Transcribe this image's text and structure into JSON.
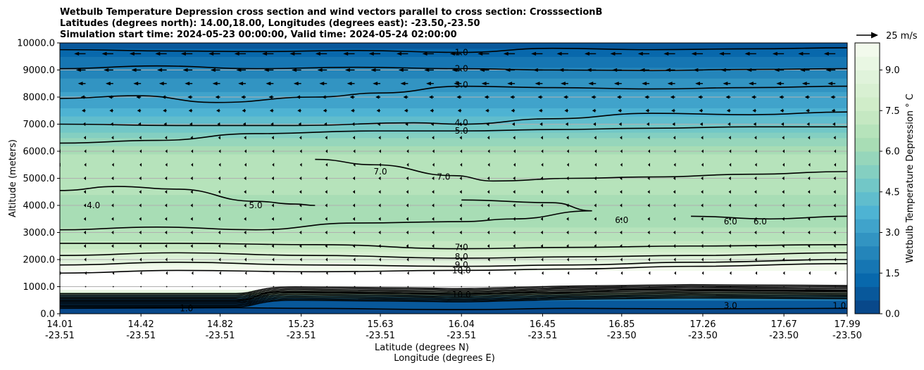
{
  "chart_data": {
    "type": "contourf",
    "title_lines": [
      "Wetbulb Temperature Depression cross section and wind vectors parallel to cross section: CrosssectionB",
      "Latitudes (degrees north): 14.00,18.00, Longitudes (degrees east): -23.50,-23.50",
      "Simulation start time: 2024-05-23 00:00:00, Valid time: 2024-05-24 02:00:00"
    ],
    "ylabel": "Altitude (meters)",
    "xlabel_lines": [
      "Latitude (degrees N)",
      "Longitude (degrees E)"
    ],
    "ylim": [
      0,
      10000
    ],
    "y_ticks": [
      0,
      1000,
      2000,
      3000,
      4000,
      5000,
      6000,
      7000,
      8000,
      9000,
      10000
    ],
    "y_tick_labels": [
      "0.0",
      "1000.0",
      "2000.0",
      "3000.0",
      "4000.0",
      "5000.0",
      "6000.0",
      "7000.0",
      "8000.0",
      "9000.0",
      "10000.0"
    ],
    "x_ticks": [
      {
        "lat": "14.01",
        "lon": "-23.51"
      },
      {
        "lat": "14.42",
        "lon": "-23.51"
      },
      {
        "lat": "14.82",
        "lon": "-23.51"
      },
      {
        "lat": "15.23",
        "lon": "-23.51"
      },
      {
        "lat": "15.63",
        "lon": "-23.51"
      },
      {
        "lat": "16.04",
        "lon": "-23.51"
      },
      {
        "lat": "16.45",
        "lon": "-23.51"
      },
      {
        "lat": "16.85",
        "lon": "-23.50"
      },
      {
        "lat": "17.26",
        "lon": "-23.50"
      },
      {
        "lat": "17.67",
        "lon": "-23.50"
      },
      {
        "lat": "17.99",
        "lon": "-23.50"
      }
    ],
    "colorbar": {
      "label": "Wetbulb Temperature Depression $^\\circ$C",
      "label_display": "Wetbulb Temperature Depression ° C",
      "range": [
        0,
        10
      ],
      "tick_values": [
        0,
        1.5,
        3,
        4.5,
        6,
        7.5,
        9
      ],
      "tick_labels": [
        "0.0",
        "1.5",
        "3.0",
        "4.5",
        "6.0",
        "7.5",
        "9.0"
      ],
      "colormap": "GnBu_r",
      "levels": 20
    },
    "wind_reference": {
      "label": "25 m/s",
      "speed": 25
    },
    "depression_profile": [
      {
        "alt": 0,
        "value": 0.3
      },
      {
        "alt": 500,
        "value": 0.8
      },
      {
        "alt": 900,
        "value": 10.5
      },
      {
        "alt": 1500,
        "value": 10.2
      },
      {
        "alt": 2000,
        "value": 8.8
      },
      {
        "alt": 2500,
        "value": 7.2
      },
      {
        "alt": 3000,
        "value": 6.6
      },
      {
        "alt": 3500,
        "value": 6.3
      },
      {
        "alt": 4000,
        "value": 6.2
      },
      {
        "alt": 4500,
        "value": 6.6
      },
      {
        "alt": 5000,
        "value": 7.0
      },
      {
        "alt": 5500,
        "value": 6.9
      },
      {
        "alt": 6000,
        "value": 6.4
      },
      {
        "alt": 6500,
        "value": 5.4
      },
      {
        "alt": 7000,
        "value": 4.4
      },
      {
        "alt": 7500,
        "value": 3.6
      },
      {
        "alt": 8000,
        "value": 3.1
      },
      {
        "alt": 8500,
        "value": 2.8
      },
      {
        "alt": 9000,
        "value": 2.1
      },
      {
        "alt": 9500,
        "value": 1.5
      },
      {
        "alt": 10000,
        "value": 0.6
      }
    ],
    "contour_lines": [
      {
        "level": "1.0",
        "points": [
          [
            14.01,
            9750
          ],
          [
            14.6,
            9700
          ],
          [
            15.0,
            9680
          ],
          [
            15.5,
            9720
          ],
          [
            16.04,
            9650
          ],
          [
            16.5,
            9800
          ],
          [
            17.0,
            9750
          ],
          [
            17.5,
            9780
          ],
          [
            17.99,
            9820
          ]
        ]
      },
      {
        "level": "2.0",
        "points": [
          [
            14.01,
            9050
          ],
          [
            14.5,
            9150
          ],
          [
            15.0,
            9050
          ],
          [
            15.5,
            9100
          ],
          [
            16.04,
            9050
          ],
          [
            16.5,
            9000
          ],
          [
            17.0,
            8980
          ],
          [
            17.5,
            9020
          ],
          [
            17.99,
            9050
          ]
        ]
      },
      {
        "level": "3.0",
        "points": [
          [
            14.01,
            7950
          ],
          [
            14.4,
            8050
          ],
          [
            14.8,
            7800
          ],
          [
            15.3,
            8000
          ],
          [
            15.63,
            8150
          ],
          [
            16.04,
            8400
          ],
          [
            16.5,
            8350
          ],
          [
            17.0,
            8300
          ],
          [
            17.5,
            8350
          ],
          [
            17.99,
            8400
          ]
        ]
      },
      {
        "level": "4.0",
        "points": [
          [
            14.01,
            7000
          ],
          [
            14.6,
            6950
          ],
          [
            15.2,
            6950
          ],
          [
            15.8,
            7050
          ],
          [
            16.04,
            7000
          ],
          [
            16.5,
            7200
          ],
          [
            17.0,
            7400
          ],
          [
            17.5,
            7350
          ],
          [
            17.99,
            7450
          ]
        ]
      },
      {
        "level": "5.0",
        "points": [
          [
            14.01,
            6300
          ],
          [
            14.5,
            6400
          ],
          [
            15.0,
            6650
          ],
          [
            15.6,
            6750
          ],
          [
            16.04,
            6750
          ],
          [
            16.5,
            6800
          ],
          [
            17.0,
            6850
          ],
          [
            17.5,
            6900
          ],
          [
            17.99,
            6900
          ]
        ]
      },
      {
        "level": "7.0",
        "points": [
          [
            15.3,
            5700
          ],
          [
            15.6,
            5500
          ],
          [
            16.0,
            5100
          ],
          [
            16.2,
            4900
          ],
          [
            16.6,
            5000
          ],
          [
            17.0,
            5050
          ],
          [
            17.5,
            5150
          ],
          [
            17.99,
            5250
          ]
        ]
      },
      {
        "level": "6.0",
        "points": [
          [
            14.01,
            4550
          ],
          [
            14.3,
            4700
          ],
          [
            14.6,
            4600
          ],
          [
            15.0,
            4150
          ],
          [
            15.2,
            4050
          ],
          [
            15.3,
            4000
          ]
        ]
      },
      {
        "level": "6.0",
        "points": [
          [
            16.04,
            4200
          ],
          [
            16.5,
            4100
          ],
          [
            16.7,
            3800
          ],
          [
            16.3,
            3500
          ],
          [
            16.04,
            3400
          ],
          [
            15.5,
            3350
          ],
          [
            15.0,
            3100
          ],
          [
            14.5,
            3200
          ],
          [
            14.01,
            3100
          ]
        ]
      },
      {
        "level": "6.0",
        "points": [
          [
            17.2,
            3600
          ],
          [
            17.6,
            3500
          ],
          [
            17.99,
            3600
          ]
        ]
      },
      {
        "level": "7.0",
        "points": [
          [
            14.01,
            2600
          ],
          [
            14.6,
            2600
          ],
          [
            15.3,
            2550
          ],
          [
            16.04,
            2400
          ],
          [
            16.6,
            2450
          ],
          [
            17.2,
            2500
          ],
          [
            17.99,
            2550
          ]
        ]
      },
      {
        "level": "8.0",
        "points": [
          [
            14.01,
            2150
          ],
          [
            14.6,
            2250
          ],
          [
            15.3,
            2150
          ],
          [
            16.04,
            2050
          ],
          [
            16.6,
            2100
          ],
          [
            17.2,
            2150
          ],
          [
            17.99,
            2250
          ]
        ]
      },
      {
        "level": "9.0",
        "points": [
          [
            14.01,
            1800
          ],
          [
            14.6,
            1900
          ],
          [
            15.3,
            1800
          ],
          [
            16.04,
            1750
          ],
          [
            16.6,
            1800
          ],
          [
            17.2,
            1900
          ],
          [
            17.99,
            2000
          ]
        ]
      },
      {
        "level": "10.0",
        "points": [
          [
            14.01,
            1500
          ],
          [
            14.6,
            1600
          ],
          [
            15.3,
            1550
          ],
          [
            16.04,
            1600
          ],
          [
            16.6,
            1650
          ],
          [
            17.2,
            1750
          ],
          [
            17.99,
            1850
          ]
        ]
      },
      {
        "level": "10.0",
        "points": [
          [
            14.01,
            480
          ],
          [
            14.9,
            480
          ],
          [
            15.1,
            800
          ],
          [
            15.63,
            780
          ],
          [
            16.04,
            720
          ],
          [
            16.5,
            780
          ],
          [
            17.0,
            900
          ],
          [
            17.5,
            860
          ],
          [
            17.99,
            850
          ]
        ]
      },
      {
        "level": "1.0",
        "points": [
          [
            14.01,
            200
          ],
          [
            14.9,
            220
          ],
          [
            15.2,
            200
          ],
          [
            16.04,
            150
          ],
          [
            16.6,
            200
          ],
          [
            17.2,
            180
          ],
          [
            17.99,
            200
          ]
        ]
      }
    ],
    "contour_labels": [
      {
        "text": "1.0",
        "lat": 16.04,
        "alt": 9650
      },
      {
        "text": "2.0",
        "lat": 16.04,
        "alt": 9050
      },
      {
        "text": "3.0",
        "lat": 16.04,
        "alt": 8450
      },
      {
        "text": "4.0",
        "lat": 16.04,
        "alt": 7050
      },
      {
        "text": "5.0",
        "lat": 16.04,
        "alt": 6750
      },
      {
        "text": "7.0",
        "lat": 15.63,
        "alt": 5250
      },
      {
        "text": "7.0",
        "lat": 15.95,
        "alt": 5050
      },
      {
        "text": "5.0",
        "lat": 15.0,
        "alt": 4000
      },
      {
        "text": "4.0",
        "lat": 14.18,
        "alt": 4000
      },
      {
        "text": "6.0",
        "lat": 16.85,
        "alt": 3450
      },
      {
        "text": "6.0",
        "lat": 17.4,
        "alt": 3400
      },
      {
        "text": "6.0",
        "lat": 17.55,
        "alt": 3400
      },
      {
        "text": "7.0",
        "lat": 16.04,
        "alt": 2450
      },
      {
        "text": "8.0",
        "lat": 16.04,
        "alt": 2100
      },
      {
        "text": "9.0",
        "lat": 16.04,
        "alt": 1800
      },
      {
        "text": "10.0",
        "lat": 16.04,
        "alt": 1600
      },
      {
        "text": "10.0",
        "lat": 16.04,
        "alt": 700
      },
      {
        "text": "1.0",
        "lat": 14.65,
        "alt": 200
      },
      {
        "text": "3.0",
        "lat": 17.4,
        "alt": 300
      },
      {
        "text": "1.0",
        "lat": 17.95,
        "alt": 300
      }
    ],
    "wind_rows": [
      {
        "alt": 9600,
        "u": -12
      },
      {
        "alt": 9000,
        "u": -10
      },
      {
        "alt": 8500,
        "u": -8
      },
      {
        "alt": 8000,
        "u": -5
      },
      {
        "alt": 7500,
        "u": -4
      },
      {
        "alt": 7000,
        "u": -3
      },
      {
        "alt": 6500,
        "u": -2
      },
      {
        "alt": 6000,
        "u": -1.5
      },
      {
        "alt": 5500,
        "u": -1.5
      },
      {
        "alt": 5000,
        "u": -2
      },
      {
        "alt": 4500,
        "u": -2
      },
      {
        "alt": 4000,
        "u": -2
      },
      {
        "alt": 3500,
        "u": -2
      },
      {
        "alt": 3000,
        "u": -2
      },
      {
        "alt": 2500,
        "u": -2
      },
      {
        "alt": 2000,
        "u": -1.5
      },
      {
        "alt": 1500,
        "u": -1
      },
      {
        "alt": 1000,
        "u": -0.5
      }
    ],
    "wind_columns": [
      14.01,
      14.14,
      14.28,
      14.42,
      14.55,
      14.68,
      14.82,
      14.95,
      15.09,
      15.23,
      15.36,
      15.5,
      15.63,
      15.77,
      15.9,
      16.04,
      16.18,
      16.31,
      16.45,
      16.58,
      16.72,
      16.85,
      16.99,
      17.12,
      17.26,
      17.4,
      17.53,
      17.67,
      17.8,
      17.93
    ]
  }
}
